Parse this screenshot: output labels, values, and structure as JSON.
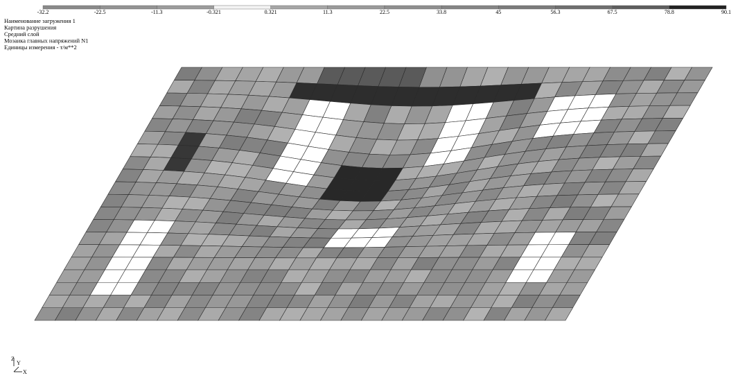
{
  "scale": {
    "labels": [
      "-32.2",
      "-22.5",
      "-11.3",
      "-0.321",
      "0.321",
      "11.3",
      "22.5",
      "33.8",
      "45",
      "56.3",
      "67.5",
      "78.8",
      "90.1"
    ]
  },
  "info": [
    "Наименование загружения 1",
    "Картина разрушения",
    "Средний слой",
    "Мозаика главных напряжений N1",
    "Единицы измерения - т/м**2"
  ],
  "axes": [
    "Z",
    "Y",
    "X"
  ]
}
